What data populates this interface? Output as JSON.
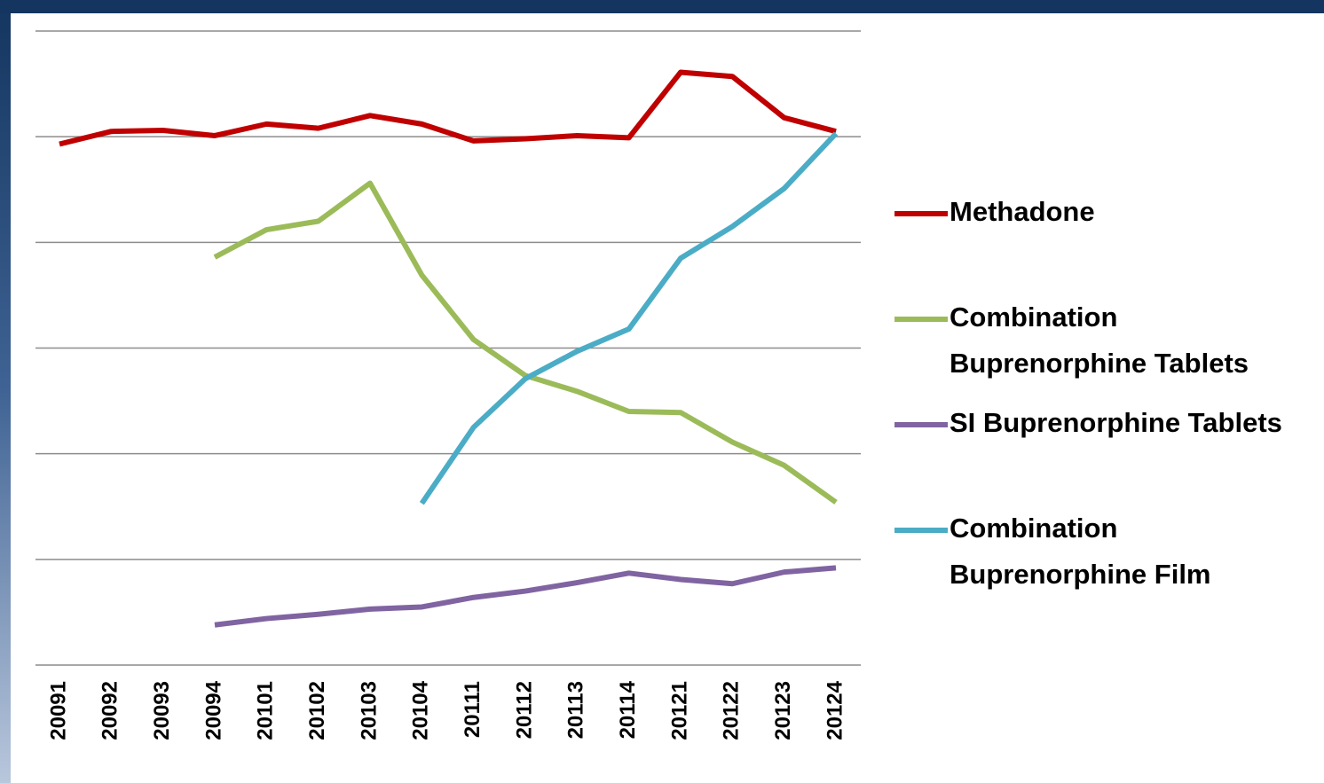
{
  "chart_data": {
    "type": "line",
    "categories": [
      "20091",
      "20092",
      "20093",
      "20094",
      "20101",
      "20102",
      "20103",
      "20104",
      "20111",
      "20112",
      "20113",
      "20114",
      "20121",
      "20122",
      "20123",
      "20124"
    ],
    "series": [
      {
        "name": "Methadone",
        "color": "#c00000",
        "values": [
          4.93,
          5.05,
          5.06,
          5.01,
          5.12,
          5.08,
          5.2,
          5.12,
          4.96,
          4.98,
          5.01,
          4.99,
          5.61,
          5.57,
          5.18,
          5.05
        ]
      },
      {
        "name": "Combination Buprenorphine Tablets",
        "color": "#9bbb59",
        "values": [
          null,
          null,
          null,
          3.86,
          4.12,
          4.2,
          4.56,
          3.69,
          3.08,
          2.74,
          2.59,
          2.4,
          2.39,
          2.11,
          1.89,
          1.54
        ]
      },
      {
        "name": "SI Buprenorphine Tablets",
        "color": "#8064a2",
        "values": [
          null,
          null,
          null,
          0.38,
          0.44,
          0.48,
          0.53,
          0.55,
          0.64,
          0.7,
          0.78,
          0.87,
          0.81,
          0.77,
          0.88,
          0.92
        ]
      },
      {
        "name": "Combination Buprenorphine Film",
        "color": "#4bacc6",
        "values": [
          null,
          null,
          null,
          null,
          null,
          null,
          null,
          1.53,
          2.25,
          2.71,
          2.97,
          3.18,
          3.85,
          4.15,
          4.51,
          5.03
        ]
      }
    ],
    "ylim": [
      0,
      6
    ],
    "yticks": [
      0,
      1,
      2,
      3,
      4,
      5,
      6
    ],
    "grid": true,
    "legend": "right"
  }
}
